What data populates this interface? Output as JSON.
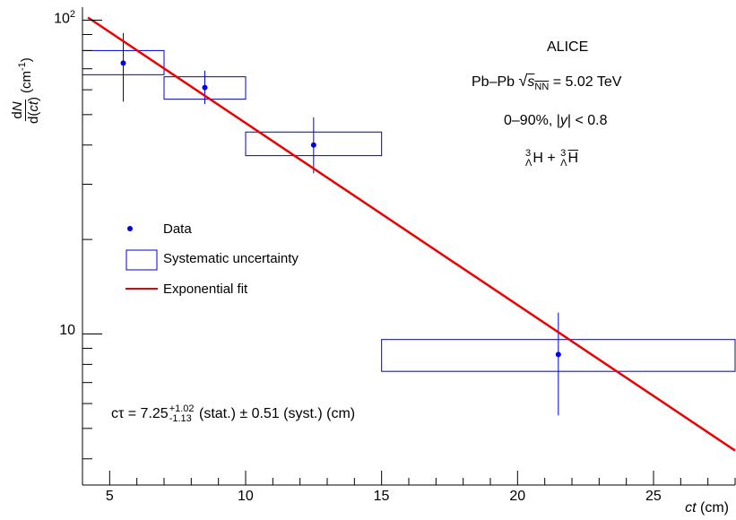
{
  "chart_data": {
    "type": "scatter",
    "xlabel": "ct (cm)",
    "ylabel": "dN/d(ct) (cm^-1)",
    "xlim": [
      4,
      28
    ],
    "ylim": [
      3.3,
      110
    ],
    "y_scale": "log",
    "x_ticks": [
      5,
      10,
      15,
      20,
      25
    ],
    "y_ticks": [
      10,
      100
    ],
    "grid": false,
    "legend_position": "left",
    "series": [
      {
        "name": "Data",
        "points": [
          {
            "x": 5.5,
            "y": 73,
            "y_stat_low": 55,
            "y_stat_high": 91
          },
          {
            "x": 8.5,
            "y": 61,
            "y_stat_low": 54,
            "y_stat_high": 69
          },
          {
            "x": 12.5,
            "y": 40,
            "y_stat_low": 32.5,
            "y_stat_high": 49
          },
          {
            "x": 21.5,
            "y": 8.6,
            "y_stat_low": 5.5,
            "y_stat_high": 11.7
          }
        ]
      },
      {
        "name": "Systematic uncertainty",
        "boxes": [
          {
            "x_low": 4,
            "x_high": 7,
            "y_low": 67,
            "y_high": 80
          },
          {
            "x_low": 7,
            "x_high": 10,
            "y_low": 56,
            "y_high": 66
          },
          {
            "x_low": 10,
            "x_high": 15,
            "y_low": 37,
            "y_high": 44
          },
          {
            "x_low": 15,
            "x_high": 28,
            "y_low": 7.6,
            "y_high": 9.6
          }
        ]
      },
      {
        "name": "Exponential fit",
        "x": [
          4.2,
          28
        ],
        "y": [
          102,
          4.25
        ]
      }
    ],
    "annotations": {
      "experiment": "ALICE",
      "system_prefix": "Pb–Pb",
      "energy_value": "= 5.02 TeV",
      "centrality_prefix": "0–90%,",
      "rapidity_suffix": "< 0.8",
      "ctau_value": "cτ = 7.25",
      "ctau_err_plus": "+1.02",
      "ctau_err_minus": "-1.13",
      "ctau_rest": "(stat.) ± 0.51 (syst.) (cm)"
    }
  },
  "colors": {
    "data": "#0000ee",
    "systematic": "#0000cc",
    "fit": "#ee0000",
    "axis": "#000000"
  }
}
